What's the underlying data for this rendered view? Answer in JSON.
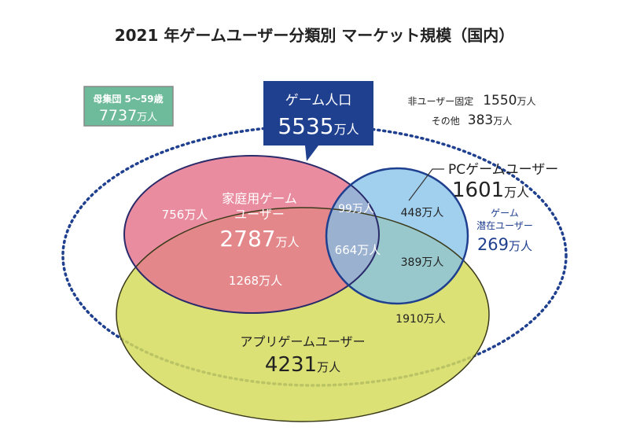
{
  "title": "2021 年ゲームユーザー分類別 マーケット規模（国内）",
  "colors": {
    "navy": "#1f3f8f",
    "green_box": "#6dbb9a",
    "home": "#e0607a",
    "pc": "#6cb6e4",
    "app": "#d6dc5e",
    "outline": "#1f3f8f"
  },
  "population": {
    "label": "母集団 5～59歳",
    "value": "7737",
    "unit": "万人"
  },
  "game_population": {
    "label": "ゲーム人口",
    "value": "5535",
    "unit": "万人"
  },
  "non_user": {
    "label": "非ユーザー固定",
    "value": "1550",
    "unit": "万人"
  },
  "other": {
    "label": "その他",
    "value": "383",
    "unit": "万人"
  },
  "pc_users": {
    "label": "PCゲームユーザー",
    "value": "1601",
    "unit": "万人"
  },
  "potential": {
    "label1": "ゲーム",
    "label2": "潜在ユーザー",
    "value": "269",
    "unit": "万人"
  },
  "home_users": {
    "label1": "家庭用ゲーム",
    "label2": "ユーザー",
    "value": "2787",
    "unit": "万人"
  },
  "app_users": {
    "label": "アプリゲームユーザー",
    "value": "4231",
    "unit": "万人"
  },
  "segments": {
    "home_only": "756万人",
    "home_pc": "99万人",
    "pc_only": "448万人",
    "all_three": "664万人",
    "pc_app": "389万人",
    "home_app": "1268万人",
    "app_only": "1910万人"
  }
}
